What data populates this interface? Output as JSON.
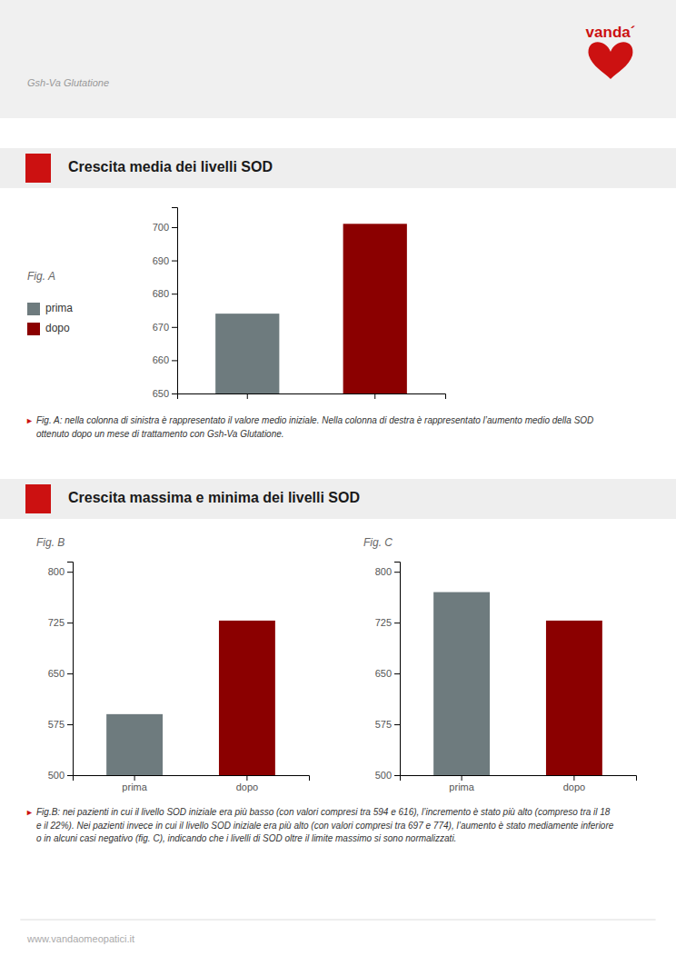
{
  "header": "Gsh-Va Glutatione",
  "logo": "vanda´",
  "footer": "www.vandaomeopatici.it",
  "chart_data": [
    {
      "type": "bar",
      "title": "Fig. A",
      "subtitle": "Crescita media dei livelli SOD",
      "categories": [
        "prima",
        "dopo"
      ],
      "values": [
        674,
        701
      ],
      "colors": [
        "#6e7b7e",
        "#8b0000"
      ],
      "ylim": [
        650,
        706
      ],
      "yticks": [
        650,
        660,
        670,
        680,
        690,
        700
      ],
      "grid": false,
      "legend": "left",
      "tick_labels": "y",
      "annotations": [
        "►",
        " Fig. A: nella colonna di sinistra è rappresentato il valore medio iniziale. Nella colonna di destra è rappresentato l’aumento medio della SOD",
        " ottenuto dopo un mese di trattamento con Gsh-Va Glutatione."
      ]
    },
    {
      "type": "bar",
      "title": "Fig. B",
      "subtitle": "Crescita massima e minima dei livelli SOD",
      "categories": [
        "prima",
        "dopo"
      ],
      "values": [
        590,
        728
      ],
      "colors": [
        "#6e7b7e",
        "#8b0000"
      ],
      "ylim": [
        500,
        815
      ],
      "yticks": [
        500,
        575,
        650,
        725,
        800
      ],
      "grid": false,
      "annotations": [
        "►",
        " Fig.B: nei pazienti in cui il livello SOD iniziale era più basso (con valori compresi tra 594 e 616), l’incremento è stato più alto (compreso tra il 18",
        " e il 22%). Nei pazienti invece in cui il livello SOD iniziale era più alto (con valori compresi tra 697 e 774), l’aumento è stato mediamente inferiore",
        " o in alcuni casi negativo (fig. C), indicando che i livelli di SOD oltre il limite massimo si sono normalizzati."
      ]
    },
    {
      "type": "bar",
      "title": "Fig. C",
      "categories": [
        "prima",
        "dopo"
      ],
      "values": [
        770,
        728
      ],
      "colors": [
        "#6e7b7e",
        "#8b0000"
      ],
      "ylim": [
        500,
        815
      ],
      "yticks": [
        500,
        575,
        650,
        725,
        800
      ],
      "grid": false
    }
  ]
}
